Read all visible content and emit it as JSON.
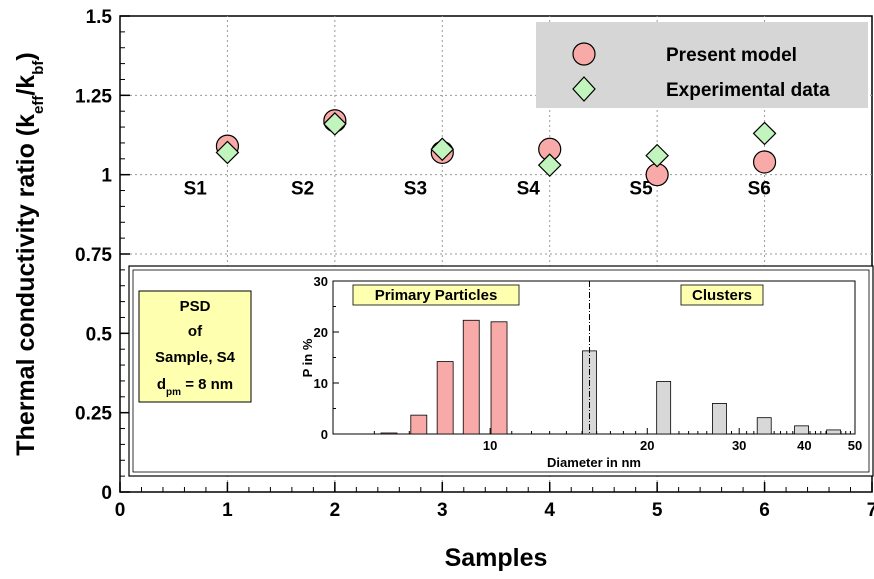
{
  "chart_data": [
    {
      "type": "scatter",
      "ylabel_main": "Thermal conductivity ratio (k",
      "ylabel_sub1": "eff",
      "ylabel_mid": "/k",
      "ylabel_sub2": "bf",
      "ylabel_end": ")",
      "xlabel": "Samples",
      "xlim": [
        0,
        7
      ],
      "ylim": [
        0,
        1.5
      ],
      "xticks": [
        "0",
        "1",
        "2",
        "3",
        "4",
        "5",
        "6",
        "7"
      ],
      "yticks": [
        "0",
        "0.25",
        "0.5",
        "0.75",
        "1",
        "1.25",
        "1.5"
      ],
      "series": [
        {
          "name": "Present model",
          "marker": "circle",
          "color": "#f7aaa8",
          "x": [
            1,
            2,
            3,
            4,
            5,
            6
          ],
          "y": [
            1.09,
            1.17,
            1.07,
            1.08,
            1.0,
            1.04
          ]
        },
        {
          "name": "Experimental data",
          "marker": "diamond",
          "color": "#c2f5bd",
          "x": [
            1,
            2,
            3,
            4,
            5,
            6
          ],
          "y": [
            1.07,
            1.16,
            1.08,
            1.03,
            1.06,
            1.13
          ]
        }
      ],
      "sample_labels": [
        {
          "text": "S1",
          "x": 0.7,
          "y": 0.96
        },
        {
          "text": "S2",
          "x": 1.7,
          "y": 0.96
        },
        {
          "text": "S3",
          "x": 2.75,
          "y": 0.96
        },
        {
          "text": "S4",
          "x": 3.8,
          "y": 0.96
        },
        {
          "text": "S5",
          "x": 4.85,
          "y": 0.96
        },
        {
          "text": "S6",
          "x": 5.95,
          "y": 0.96
        }
      ],
      "legend_position": "top-right",
      "legend_bg": "#d6d6d6"
    },
    {
      "type": "bar",
      "xlabel": "Diameter in nm",
      "ylabel": "P in %",
      "xscale": "log",
      "xlim": [
        5,
        50
      ],
      "ylim": [
        0,
        30
      ],
      "xticks": [
        "10",
        "20",
        "30",
        "40",
        "50"
      ],
      "yticks": [
        "0",
        "10",
        "20",
        "30"
      ],
      "primary_color": "#f7aaa8",
      "cluster_color": "#d8d8d8",
      "primary_bars": [
        {
          "x": 6.4,
          "value": 0.2
        },
        {
          "x": 7.3,
          "value": 3.7
        },
        {
          "x": 8.2,
          "value": 14.2
        },
        {
          "x": 9.2,
          "value": 22.3
        },
        {
          "x": 10.4,
          "value": 22.0
        }
      ],
      "cluster_bars": [
        {
          "x": 15.5,
          "value": 16.3
        },
        {
          "x": 21.5,
          "value": 10.3
        },
        {
          "x": 27.5,
          "value": 6.0
        },
        {
          "x": 33.5,
          "value": 3.2
        },
        {
          "x": 39.5,
          "value": 1.6
        },
        {
          "x": 45.5,
          "value": 0.8
        }
      ],
      "divider_x": 15.5,
      "region_labels": [
        "Primary Particles",
        "Clusters"
      ],
      "region_label_bg": "#ffffb0",
      "info_box": {
        "line1": "PSD",
        "line2": "of",
        "line3": "Sample,  S4",
        "line4_d": "d",
        "line4_sub": "pm",
        "line4_rest": " = 8 nm",
        "bg": "#ffffb0"
      }
    }
  ]
}
